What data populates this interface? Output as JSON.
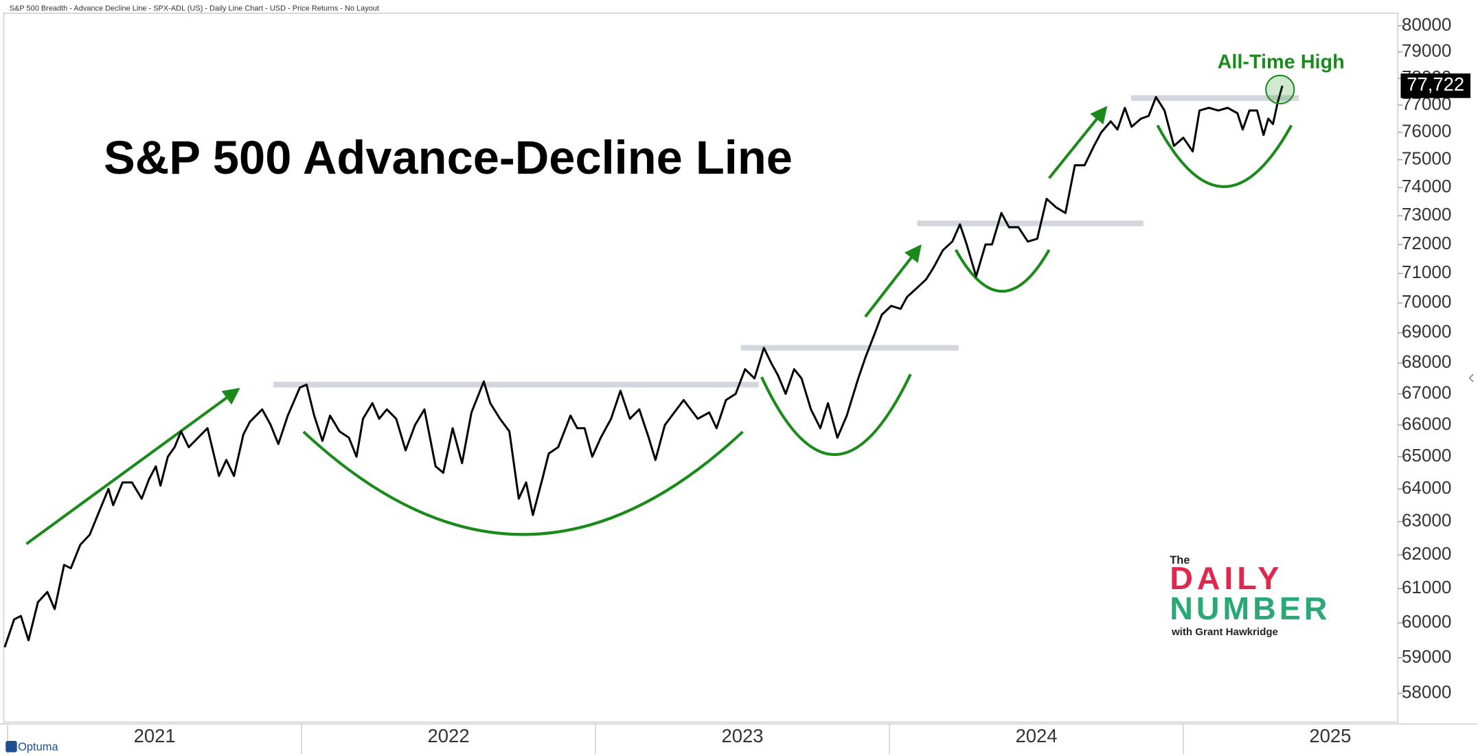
{
  "chart_data": {
    "type": "line",
    "header": "S&P 500 Breadth - Advance Decline Line - SPX-ADL (US) - Daily Line Chart - USD - Price Returns - No Layout",
    "title": "S&P 500 Advance-Decline Line",
    "annotation": "All-Time High",
    "color": "#000000",
    "y_log": true,
    "xlim": [
      2020.99,
      2025.73
    ],
    "xticks": [
      2021,
      2022,
      2023,
      2024,
      2025
    ],
    "ylim": [
      57200,
      80450
    ],
    "yticks": [
      58000,
      59000,
      60000,
      61000,
      62000,
      63000,
      64000,
      65000,
      66000,
      67000,
      68000,
      69000,
      70000,
      71000,
      72000,
      73000,
      74000,
      75000,
      76000,
      77000,
      78000,
      79000,
      80000
    ],
    "last_value": {
      "value": 77722,
      "label": "77,722"
    },
    "x": [
      2020.99,
      2021.022,
      2021.045,
      2021.071,
      2021.103,
      2021.135,
      2021.16,
      2021.192,
      2021.215,
      2021.247,
      2021.279,
      2021.311,
      2021.343,
      2021.359,
      2021.391,
      2021.423,
      2021.456,
      2021.481,
      2021.504,
      2021.52,
      2021.545,
      2021.568,
      2021.59,
      2021.616,
      2021.648,
      2021.68,
      2021.719,
      2021.744,
      2021.77,
      2021.802,
      2021.824,
      2021.866,
      2021.895,
      2021.921,
      2021.953,
      2021.994,
      2022.017,
      2022.043,
      2022.071,
      2022.097,
      2022.129,
      2022.161,
      2022.187,
      2022.209,
      2022.241,
      2022.264,
      2022.29,
      2022.322,
      2022.354,
      2022.386,
      2022.418,
      2022.456,
      2022.482,
      2022.514,
      2022.546,
      2022.578,
      2022.62,
      2022.642,
      2022.675,
      2022.707,
      2022.739,
      2022.764,
      2022.787,
      2022.819,
      2022.841,
      2022.873,
      2022.915,
      2022.938,
      2022.963,
      2022.989,
      2023.018,
      2023.053,
      2023.085,
      2023.117,
      2023.149,
      2023.181,
      2023.204,
      2023.236,
      2023.268,
      2023.3,
      2023.348,
      2023.387,
      2023.412,
      2023.444,
      2023.477,
      2023.509,
      2023.541,
      2023.573,
      2023.598,
      2023.621,
      2023.647,
      2023.676,
      2023.701,
      2023.733,
      2023.765,
      2023.791,
      2023.823,
      2023.855,
      2023.894,
      2023.919,
      2023.951,
      2023.974,
      2024.006,
      2024.038,
      2024.06,
      2024.093,
      2024.125,
      2024.15,
      2024.182,
      2024.214,
      2024.24,
      2024.263,
      2024.295,
      2024.327,
      2024.349,
      2024.381,
      2024.407,
      2024.439,
      2024.471,
      2024.503,
      2024.535,
      2024.567,
      2024.599,
      2024.631,
      2024.664,
      2024.696,
      2024.721,
      2024.753,
      2024.776,
      2024.801,
      2024.824,
      2024.856,
      2024.882,
      2024.907,
      2024.936,
      2024.968,
      2025.0,
      2025.032,
      2025.055,
      2025.087,
      2025.119,
      2025.151,
      2025.184,
      2025.202,
      2025.225,
      2025.251,
      2025.273,
      2025.289,
      2025.305,
      2025.321,
      2025.337
    ],
    "values": [
      59300,
      60100,
      60200,
      59500,
      60600,
      60900,
      60400,
      61700,
      61600,
      62300,
      62600,
      63300,
      64000,
      63500,
      64200,
      64200,
      63700,
      64300,
      64700,
      64100,
      65000,
      65300,
      65800,
      65300,
      65600,
      65900,
      64400,
      64900,
      64400,
      65700,
      66100,
      66500,
      66000,
      65400,
      66300,
      67200,
      67300,
      66300,
      65500,
      66300,
      65800,
      65600,
      65000,
      66200,
      66700,
      66200,
      66500,
      66200,
      65200,
      66000,
      66500,
      64700,
      64500,
      65900,
      64800,
      66400,
      67400,
      66700,
      66200,
      65800,
      63700,
      64200,
      63200,
      64300,
      65100,
      65300,
      66300,
      65900,
      65900,
      65000,
      65600,
      66200,
      67100,
      66200,
      66500,
      65600,
      64900,
      66000,
      66400,
      66800,
      66200,
      66400,
      65900,
      66800,
      67000,
      67800,
      67500,
      68500,
      68000,
      67600,
      67000,
      67800,
      67500,
      66500,
      65900,
      66700,
      65600,
      66300,
      67500,
      68200,
      69000,
      69600,
      69900,
      69800,
      70200,
      70500,
      70800,
      71200,
      71800,
      72100,
      72700,
      72000,
      70900,
      72000,
      72000,
      73100,
      72600,
      72600,
      72100,
      72200,
      73600,
      73300,
      73100,
      74800,
      74800,
      75500,
      76000,
      76400,
      76100,
      76900,
      76200,
      76500,
      76600,
      77300,
      76800,
      75500,
      75800,
      75300,
      76800,
      76900,
      76800,
      76900,
      76700,
      76100,
      76800,
      76800,
      75900,
      76500,
      76300,
      77100,
      77722
    ]
  },
  "branding": {
    "the": "The",
    "daily": "DAILY",
    "number": "NUMBER",
    "byline": "with Grant Hawkridge",
    "platform": "Optuma"
  }
}
